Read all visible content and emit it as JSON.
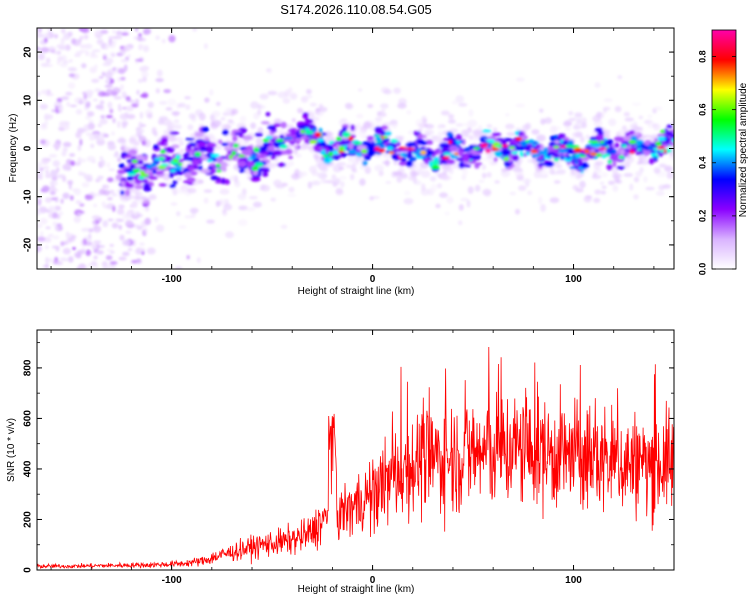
{
  "title": "S174.2026.110.08.54.G05",
  "chart_data": [
    {
      "type": "heatmap",
      "xlabel": "Height of straight line (km)",
      "ylabel": "Frequency (Hz)",
      "xlim": [
        -167,
        150
      ],
      "ylim": [
        -25,
        25
      ],
      "xticks": [
        -100,
        0,
        100
      ],
      "yticks": [
        -20,
        -10,
        0,
        10,
        20
      ],
      "colorbar": {
        "label": "Normalized spectral amplitude",
        "range": [
          0,
          0.9
        ],
        "ticks": [
          0.0,
          0.2,
          0.4,
          0.6,
          0.8
        ],
        "colors": [
          "#ffffff",
          "#d9b3ff",
          "#8a00ff",
          "#0000ff",
          "#00ffff",
          "#00ff00",
          "#ffff00",
          "#ff0000",
          "#ff00aa"
        ]
      },
      "ridge": {
        "description_points_x": [
          -120,
          -100,
          -80,
          -60,
          -45,
          -35,
          -20,
          0,
          25,
          50,
          75,
          100,
          125,
          150
        ],
        "center_freq": [
          -5,
          -3,
          -2,
          -1,
          1,
          4,
          0,
          1,
          -1,
          0,
          0,
          -1,
          0,
          1
        ]
      }
    },
    {
      "type": "line",
      "xlabel": "Height of straight line (km)",
      "ylabel": "SNR (10 * v/v)",
      "xlim": [
        -167,
        150
      ],
      "ylim": [
        0,
        950
      ],
      "xticks": [
        -100,
        0,
        100
      ],
      "yticks": [
        0,
        200,
        400,
        600,
        800
      ],
      "series": [
        {
          "name": "SNR",
          "color": "#ff0000",
          "x": [
            -167,
            -150,
            -130,
            -110,
            -95,
            -85,
            -75,
            -65,
            -55,
            -45,
            -40,
            -35,
            -30,
            -25,
            -20,
            -15,
            -10,
            -5,
            0,
            5,
            10,
            15,
            20,
            30,
            40,
            50,
            60,
            70,
            80,
            90,
            100,
            110,
            120,
            130,
            140,
            150
          ],
          "values": [
            15,
            15,
            18,
            20,
            25,
            35,
            60,
            80,
            100,
            110,
            120,
            130,
            150,
            200,
            190,
            230,
            250,
            280,
            300,
            330,
            370,
            400,
            420,
            440,
            450,
            460,
            470,
            480,
            470,
            460,
            450,
            440,
            430,
            420,
            420,
            430
          ]
        }
      ]
    }
  ]
}
